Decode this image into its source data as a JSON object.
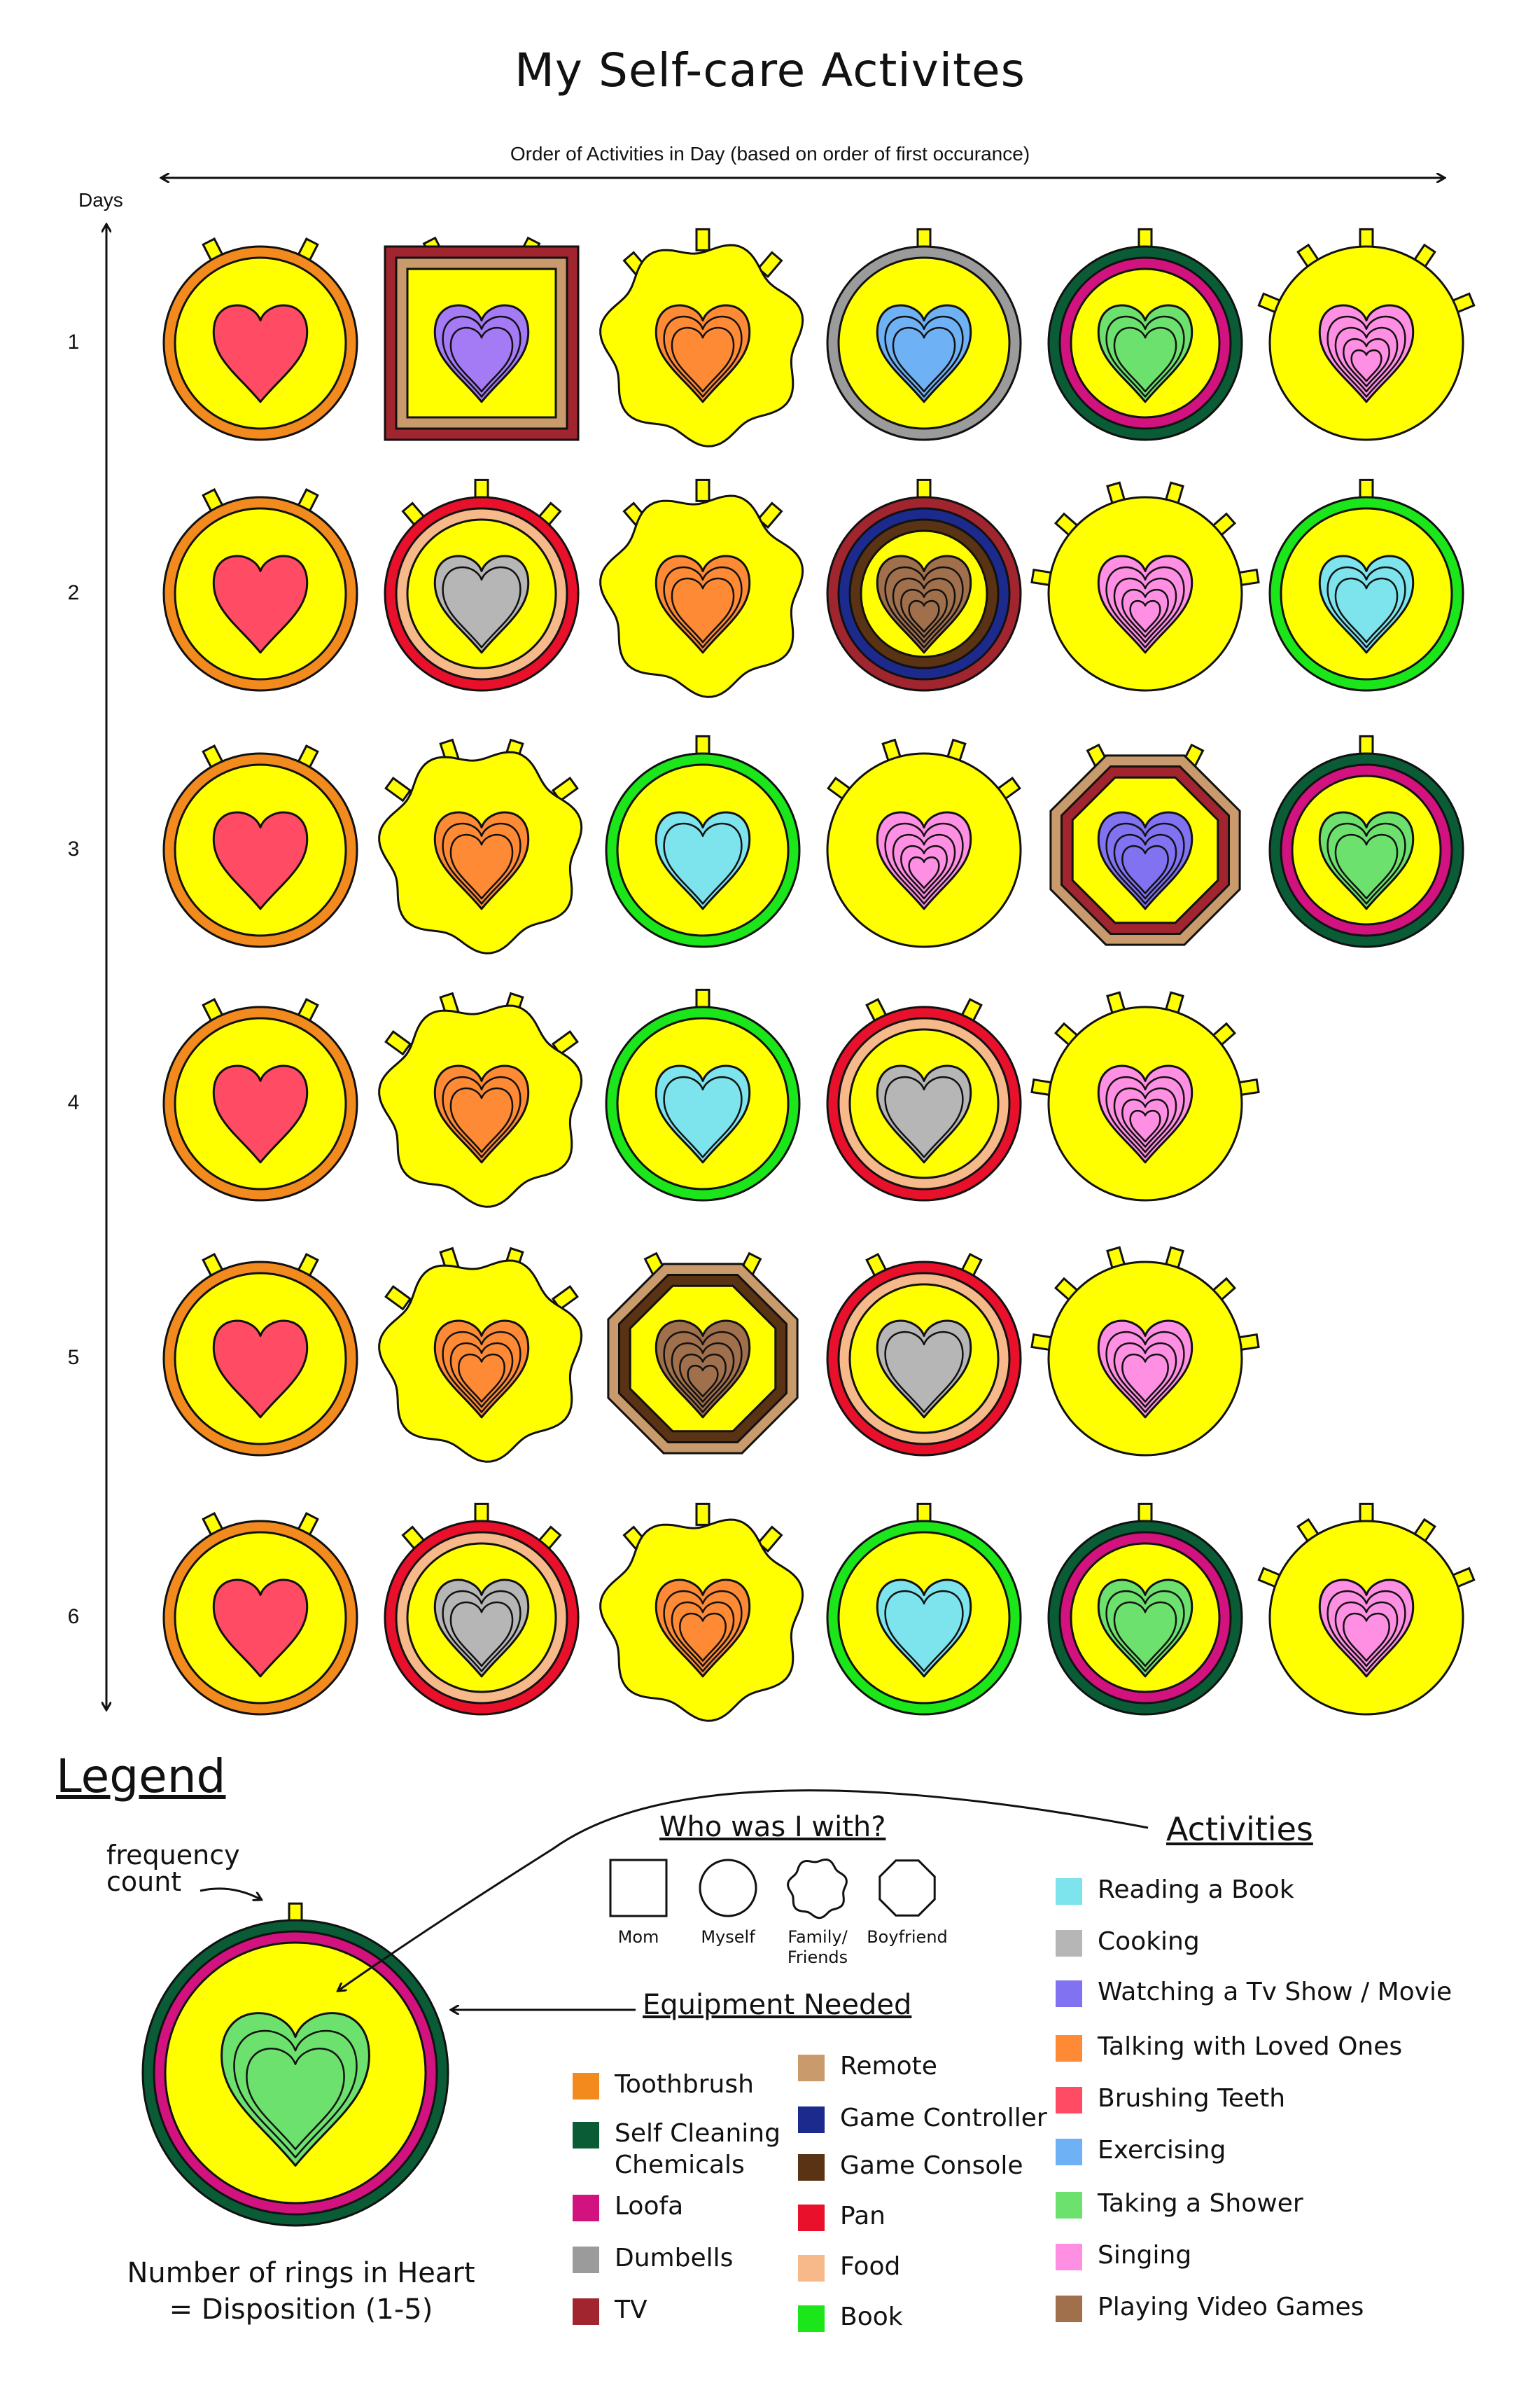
{
  "title": "My Self-care Activites",
  "x_axis_label": "Order of Activities in Day (based on order of first occurance)",
  "y_axis_label": "Days",
  "days": [
    "1",
    "2",
    "3",
    "4",
    "5",
    "6"
  ],
  "colors": {
    "yellow": "#FFFF00",
    "toothbrush": "#F28A1E",
    "self_cleaning": "#0A5C36",
    "loofa": "#D2127F",
    "dumbells": "#9B9B9B",
    "tv": "#A0252E",
    "remote": "#C99A6B",
    "game_controller": "#1B2A8C",
    "game_console": "#5A3214",
    "pan": "#E8102A",
    "food": "#F7B98A",
    "book": "#1AE61A",
    "reading": "#7DE3EC",
    "cooking": "#B6B6B6",
    "watching": "#8172F2",
    "talking": "#FF8A35",
    "brushing": "#FF4B63",
    "exercising": "#6FB1F5",
    "shower": "#6DE16D",
    "singing": "#FF8FE3",
    "videogames": "#A06F4B",
    "purple_heart": "#A57AF5"
  },
  "badges": [
    [
      {
        "activity": "Brushing Teeth",
        "heart": "brushing",
        "shape": "myself",
        "rings": [
          "toothbrush"
        ],
        "frequency": 2,
        "disposition": 1
      },
      {
        "activity": "Watching a Tv Show / Movie",
        "heart": "purple_heart",
        "shape": "mom",
        "rings": [
          "tv",
          "remote"
        ],
        "frequency": 2,
        "disposition": 3
      },
      {
        "activity": "Talking with Loved Ones",
        "heart": "talking",
        "shape": "family",
        "rings": [],
        "frequency": 3,
        "disposition": 3
      },
      {
        "activity": "Exercising",
        "heart": "exercising",
        "shape": "myself",
        "rings": [
          "dumbells"
        ],
        "frequency": 1,
        "disposition": 3
      },
      {
        "activity": "Taking a Shower",
        "heart": "shower",
        "shape": "myself",
        "rings": [
          "self_cleaning",
          "loofa"
        ],
        "frequency": 1,
        "disposition": 3
      },
      {
        "activity": "Singing",
        "heart": "singing",
        "shape": "myself",
        "rings": [],
        "frequency": 5,
        "disposition": 5
      }
    ],
    [
      {
        "activity": "Brushing Teeth",
        "heart": "brushing",
        "shape": "myself",
        "rings": [
          "toothbrush"
        ],
        "frequency": 2,
        "disposition": 1
      },
      {
        "activity": "Cooking",
        "heart": "cooking",
        "shape": "myself",
        "rings": [
          "pan",
          "food"
        ],
        "frequency": 3,
        "disposition": 2
      },
      {
        "activity": "Talking with Loved Ones",
        "heart": "talking",
        "shape": "family",
        "rings": [],
        "frequency": 3,
        "disposition": 3
      },
      {
        "activity": "Playing Video Games",
        "heart": "videogames",
        "shape": "myself",
        "rings": [
          "tv",
          "game_controller",
          "game_console"
        ],
        "frequency": 1,
        "disposition": 5
      },
      {
        "activity": "Singing",
        "heart": "singing",
        "shape": "myself",
        "rings": [],
        "frequency": 6,
        "disposition": 5
      },
      {
        "activity": "Reading a Book",
        "heart": "reading",
        "shape": "myself",
        "rings": [
          "book"
        ],
        "frequency": 1,
        "disposition": 3
      }
    ],
    [
      {
        "activity": "Brushing Teeth",
        "heart": "brushing",
        "shape": "myself",
        "rings": [
          "toothbrush"
        ],
        "frequency": 2,
        "disposition": 1
      },
      {
        "activity": "Talking with Loved Ones",
        "heart": "talking",
        "shape": "family",
        "rings": [],
        "frequency": 4,
        "disposition": 3
      },
      {
        "activity": "Reading a Book",
        "heart": "reading",
        "shape": "myself",
        "rings": [
          "book"
        ],
        "frequency": 1,
        "disposition": 2
      },
      {
        "activity": "Singing",
        "heart": "singing",
        "shape": "myself",
        "rings": [],
        "frequency": 4,
        "disposition": 5
      },
      {
        "activity": "Watching a Tv Show / Movie",
        "heart": "watching",
        "shape": "boyfriend",
        "rings": [
          "remote",
          "tv"
        ],
        "frequency": 2,
        "disposition": 4
      },
      {
        "activity": "Taking a Shower",
        "heart": "shower",
        "shape": "myself",
        "rings": [
          "self_cleaning",
          "loofa"
        ],
        "frequency": 1,
        "disposition": 3
      }
    ],
    [
      {
        "activity": "Brushing Teeth",
        "heart": "brushing",
        "shape": "myself",
        "rings": [
          "toothbrush"
        ],
        "frequency": 2,
        "disposition": 1
      },
      {
        "activity": "Talking with Loved Ones",
        "heart": "talking",
        "shape": "family",
        "rings": [],
        "frequency": 4,
        "disposition": 3
      },
      {
        "activity": "Reading a Book",
        "heart": "reading",
        "shape": "myself",
        "rings": [
          "book"
        ],
        "frequency": 1,
        "disposition": 2
      },
      {
        "activity": "Cooking",
        "heart": "cooking",
        "shape": "myself",
        "rings": [
          "pan",
          "food"
        ],
        "frequency": 2,
        "disposition": 2
      },
      {
        "activity": "Singing",
        "heart": "singing",
        "shape": "myself",
        "rings": [],
        "frequency": 6,
        "disposition": 5
      }
    ],
    [
      {
        "activity": "Brushing Teeth",
        "heart": "brushing",
        "shape": "myself",
        "rings": [
          "toothbrush"
        ],
        "frequency": 2,
        "disposition": 1
      },
      {
        "activity": "Talking with Loved Ones",
        "heart": "talking",
        "shape": "family",
        "rings": [],
        "frequency": 4,
        "disposition": 4
      },
      {
        "activity": "Playing Video Games",
        "heart": "videogames",
        "shape": "boyfriend",
        "rings": [
          "remote",
          "game_console"
        ],
        "frequency": 2,
        "disposition": 5
      },
      {
        "activity": "Cooking",
        "heart": "cooking",
        "shape": "myself",
        "rings": [
          "pan",
          "food"
        ],
        "frequency": 2,
        "disposition": 2
      },
      {
        "activity": "Singing",
        "heart": "singing",
        "shape": "myself",
        "rings": [],
        "frequency": 6,
        "disposition": 4
      }
    ],
    [
      {
        "activity": "Brushing Teeth",
        "heart": "brushing",
        "shape": "myself",
        "rings": [
          "toothbrush"
        ],
        "frequency": 2,
        "disposition": 1
      },
      {
        "activity": "Cooking",
        "heart": "cooking",
        "shape": "myself",
        "rings": [
          "pan",
          "food"
        ],
        "frequency": 3,
        "disposition": 3
      },
      {
        "activity": "Talking with Loved Ones",
        "heart": "talking",
        "shape": "family",
        "rings": [],
        "frequency": 3,
        "disposition": 4
      },
      {
        "activity": "Reading a Book",
        "heart": "reading",
        "shape": "myself",
        "rings": [
          "book"
        ],
        "frequency": 1,
        "disposition": 2
      },
      {
        "activity": "Taking a Shower",
        "heart": "shower",
        "shape": "myself",
        "rings": [
          "self_cleaning",
          "loofa"
        ],
        "frequency": 1,
        "disposition": 3
      },
      {
        "activity": "Singing",
        "heart": "singing",
        "shape": "myself",
        "rings": [],
        "frequency": 5,
        "disposition": 4
      }
    ]
  ],
  "legend": {
    "title": "Legend",
    "frequency_label": "frequency\ncount",
    "example": {
      "heart": "shower",
      "rings": [
        "self_cleaning",
        "loofa"
      ],
      "frequency": 1,
      "disposition": 3
    },
    "caption": "Number of rings in Heart\n= Disposition (1-5)",
    "who_title": "Who was I with?",
    "who": [
      {
        "label": "Mom",
        "shape": "mom"
      },
      {
        "label": "Myself",
        "shape": "myself"
      },
      {
        "label": "Family/\nFriends",
        "shape": "family"
      },
      {
        "label": "Boyfriend",
        "shape": "boyfriend"
      }
    ],
    "equipment_title": "Equipment Needed",
    "equipment_col1": [
      {
        "label": "Toothbrush",
        "color": "#F28A1E"
      },
      {
        "label": "Self Cleaning\nChemicals",
        "color": "#0A5C36"
      },
      {
        "label": "Loofa",
        "color": "#D2127F"
      },
      {
        "label": "Dumbells",
        "color": "#9B9B9B"
      },
      {
        "label": "TV",
        "color": "#A0252E"
      }
    ],
    "equipment_col2": [
      {
        "label": "Remote",
        "color": "#C99A6B"
      },
      {
        "label": "Game Controller",
        "color": "#1B2A8C"
      },
      {
        "label": "Game Console",
        "color": "#5A3214"
      },
      {
        "label": "Pan",
        "color": "#E8102A"
      },
      {
        "label": "Food",
        "color": "#F7B98A"
      },
      {
        "label": "Book",
        "color": "#1AE61A"
      }
    ],
    "activities_title": "Activities",
    "activities": [
      {
        "label": "Reading a Book",
        "color": "#7DE3EC"
      },
      {
        "label": "Cooking",
        "color": "#B6B6B6"
      },
      {
        "label": "Watching a Tv Show / Movie",
        "color": "#8172F2"
      },
      {
        "label": "Talking with Loved Ones",
        "color": "#FF8A35"
      },
      {
        "label": "Brushing Teeth",
        "color": "#FF4B63"
      },
      {
        "label": "Exercising",
        "color": "#6FB1F5"
      },
      {
        "label": "Taking a Shower",
        "color": "#6DE16D"
      },
      {
        "label": "Singing",
        "color": "#FF8FE3"
      },
      {
        "label": "Playing Video Games",
        "color": "#A06F4B"
      }
    ]
  }
}
